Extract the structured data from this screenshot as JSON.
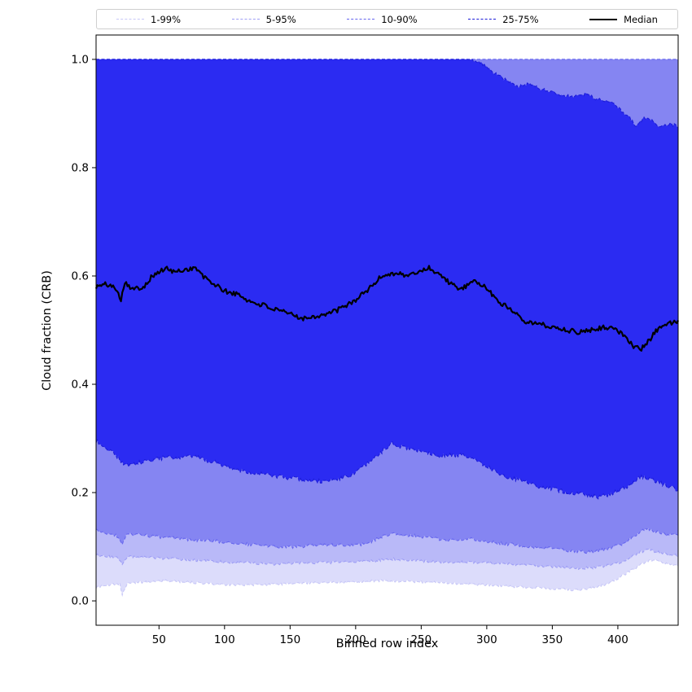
{
  "figure": {
    "background": "#ffffff"
  },
  "legend": {
    "items": [
      {
        "label": "1-99%",
        "color": "#c8c8f7",
        "style": "dashed"
      },
      {
        "label": "5-95%",
        "color": "#9e9ef5",
        "style": "dashed"
      },
      {
        "label": "10-90%",
        "color": "#6666ee",
        "style": "dashed"
      },
      {
        "label": "25-75%",
        "color": "#1b1bd8",
        "style": "dashed"
      },
      {
        "label": "Median",
        "color": "#000000",
        "style": "solid"
      }
    ]
  },
  "chart_data": {
    "type": "area",
    "title": "",
    "xlabel": "Binned row index",
    "ylabel": "Cloud fraction (CRB)",
    "xlim": [
      2,
      446
    ],
    "ylim": [
      -0.045,
      1.045
    ],
    "grid": false,
    "legend_position": "top-outside",
    "xticks": [
      {
        "value": 50,
        "label": "50"
      },
      {
        "value": 100,
        "label": "100"
      },
      {
        "value": 150,
        "label": "150"
      },
      {
        "value": 200,
        "label": "200"
      },
      {
        "value": 250,
        "label": "250"
      },
      {
        "value": 300,
        "label": "300"
      },
      {
        "value": 350,
        "label": "350"
      },
      {
        "value": 400,
        "label": "400"
      }
    ],
    "yticks": [
      {
        "value": 0.0,
        "label": "0.0"
      },
      {
        "value": 0.2,
        "label": "0.2"
      },
      {
        "value": 0.4,
        "label": "0.4"
      },
      {
        "value": 0.6,
        "label": "0.6"
      },
      {
        "value": 0.8,
        "label": "0.8"
      },
      {
        "value": 1.0,
        "label": "1.0"
      }
    ],
    "bands": [
      {
        "name": "1-99%",
        "fill": "#dcdcfb",
        "edge": "#c8c8f7",
        "upper_constant": 1.0,
        "lower_points": [
          [
            2,
            0.025
          ],
          [
            8,
            0.028
          ],
          [
            14,
            0.03
          ],
          [
            20,
            0.032
          ],
          [
            22,
            0.012
          ],
          [
            26,
            0.033
          ],
          [
            40,
            0.035
          ],
          [
            55,
            0.037
          ],
          [
            70,
            0.035
          ],
          [
            85,
            0.032
          ],
          [
            100,
            0.03
          ],
          [
            115,
            0.029
          ],
          [
            130,
            0.03
          ],
          [
            145,
            0.031
          ],
          [
            160,
            0.033
          ],
          [
            175,
            0.034
          ],
          [
            190,
            0.035
          ],
          [
            205,
            0.036
          ],
          [
            220,
            0.037
          ],
          [
            235,
            0.036
          ],
          [
            250,
            0.035
          ],
          [
            265,
            0.034
          ],
          [
            280,
            0.032
          ],
          [
            295,
            0.03
          ],
          [
            310,
            0.028
          ],
          [
            325,
            0.026
          ],
          [
            340,
            0.024
          ],
          [
            355,
            0.022
          ],
          [
            368,
            0.02
          ],
          [
            380,
            0.024
          ],
          [
            390,
            0.03
          ],
          [
            398,
            0.038
          ],
          [
            406,
            0.05
          ],
          [
            414,
            0.062
          ],
          [
            421,
            0.072
          ],
          [
            427,
            0.076
          ],
          [
            433,
            0.071
          ],
          [
            440,
            0.067
          ],
          [
            446,
            0.065
          ]
        ]
      },
      {
        "name": "5-95%",
        "fill": "#b9b9f8",
        "edge": "#9e9ef5",
        "upper_constant": 1.0,
        "lower_points": [
          [
            2,
            0.085
          ],
          [
            10,
            0.082
          ],
          [
            18,
            0.08
          ],
          [
            22,
            0.068
          ],
          [
            26,
            0.082
          ],
          [
            40,
            0.08
          ],
          [
            60,
            0.078
          ],
          [
            80,
            0.075
          ],
          [
            100,
            0.072
          ],
          [
            120,
            0.07
          ],
          [
            140,
            0.068
          ],
          [
            160,
            0.07
          ],
          [
            180,
            0.071
          ],
          [
            200,
            0.072
          ],
          [
            215,
            0.074
          ],
          [
            228,
            0.077
          ],
          [
            240,
            0.075
          ],
          [
            255,
            0.073
          ],
          [
            270,
            0.071
          ],
          [
            285,
            0.072
          ],
          [
            300,
            0.07
          ],
          [
            315,
            0.068
          ],
          [
            330,
            0.066
          ],
          [
            345,
            0.064
          ],
          [
            360,
            0.062
          ],
          [
            372,
            0.06
          ],
          [
            384,
            0.062
          ],
          [
            394,
            0.066
          ],
          [
            402,
            0.072
          ],
          [
            410,
            0.08
          ],
          [
            417,
            0.09
          ],
          [
            424,
            0.094
          ],
          [
            430,
            0.09
          ],
          [
            438,
            0.086
          ],
          [
            446,
            0.083
          ]
        ]
      },
      {
        "name": "10-90%",
        "fill": "#8585f2",
        "edge": "#6666ee",
        "upper_constant": 1.0,
        "lower_points": [
          [
            2,
            0.13
          ],
          [
            10,
            0.125
          ],
          [
            18,
            0.12
          ],
          [
            22,
            0.105
          ],
          [
            26,
            0.125
          ],
          [
            35,
            0.122
          ],
          [
            50,
            0.118
          ],
          [
            65,
            0.115
          ],
          [
            80,
            0.112
          ],
          [
            95,
            0.11
          ],
          [
            110,
            0.106
          ],
          [
            125,
            0.103
          ],
          [
            140,
            0.1
          ],
          [
            155,
            0.1
          ],
          [
            170,
            0.102
          ],
          [
            185,
            0.103
          ],
          [
            200,
            0.102
          ],
          [
            210,
            0.108
          ],
          [
            220,
            0.118
          ],
          [
            228,
            0.125
          ],
          [
            236,
            0.122
          ],
          [
            245,
            0.12
          ],
          [
            255,
            0.118
          ],
          [
            265,
            0.113
          ],
          [
            275,
            0.112
          ],
          [
            285,
            0.115
          ],
          [
            295,
            0.112
          ],
          [
            305,
            0.108
          ],
          [
            315,
            0.105
          ],
          [
            325,
            0.103
          ],
          [
            335,
            0.1
          ],
          [
            345,
            0.098
          ],
          [
            355,
            0.095
          ],
          [
            365,
            0.092
          ],
          [
            375,
            0.09
          ],
          [
            385,
            0.092
          ],
          [
            395,
            0.098
          ],
          [
            403,
            0.105
          ],
          [
            410,
            0.115
          ],
          [
            417,
            0.128
          ],
          [
            423,
            0.132
          ],
          [
            430,
            0.127
          ],
          [
            438,
            0.122
          ],
          [
            446,
            0.12
          ]
        ]
      },
      {
        "name": "25-75%",
        "fill": "#2b2bf2",
        "edge": "#1b1bd8",
        "lower_points": [
          [
            2,
            0.295
          ],
          [
            8,
            0.285
          ],
          [
            15,
            0.275
          ],
          [
            22,
            0.255
          ],
          [
            28,
            0.25
          ],
          [
            35,
            0.255
          ],
          [
            45,
            0.26
          ],
          [
            55,
            0.265
          ],
          [
            65,
            0.262
          ],
          [
            75,
            0.268
          ],
          [
            85,
            0.26
          ],
          [
            95,
            0.255
          ],
          [
            105,
            0.245
          ],
          [
            115,
            0.24
          ],
          [
            125,
            0.235
          ],
          [
            135,
            0.232
          ],
          [
            145,
            0.228
          ],
          [
            155,
            0.225
          ],
          [
            165,
            0.222
          ],
          [
            175,
            0.22
          ],
          [
            185,
            0.225
          ],
          [
            195,
            0.23
          ],
          [
            205,
            0.245
          ],
          [
            215,
            0.265
          ],
          [
            222,
            0.28
          ],
          [
            228,
            0.29
          ],
          [
            235,
            0.285
          ],
          [
            242,
            0.28
          ],
          [
            250,
            0.277
          ],
          [
            258,
            0.272
          ],
          [
            266,
            0.268
          ],
          [
            274,
            0.27
          ],
          [
            282,
            0.268
          ],
          [
            290,
            0.262
          ],
          [
            298,
            0.252
          ],
          [
            306,
            0.24
          ],
          [
            314,
            0.23
          ],
          [
            322,
            0.225
          ],
          [
            330,
            0.22
          ],
          [
            338,
            0.212
          ],
          [
            346,
            0.208
          ],
          [
            354,
            0.205
          ],
          [
            362,
            0.2
          ],
          [
            370,
            0.198
          ],
          [
            378,
            0.195
          ],
          [
            386,
            0.192
          ],
          [
            394,
            0.196
          ],
          [
            402,
            0.205
          ],
          [
            410,
            0.215
          ],
          [
            418,
            0.23
          ],
          [
            425,
            0.225
          ],
          [
            432,
            0.218
          ],
          [
            440,
            0.21
          ],
          [
            446,
            0.205
          ]
        ],
        "upper_points": [
          [
            2,
            1.0
          ],
          [
            285,
            1.0
          ],
          [
            292,
            0.997
          ],
          [
            298,
            0.99
          ],
          [
            305,
            0.976
          ],
          [
            312,
            0.966
          ],
          [
            318,
            0.956
          ],
          [
            325,
            0.95
          ],
          [
            332,
            0.956
          ],
          [
            340,
            0.946
          ],
          [
            348,
            0.941
          ],
          [
            355,
            0.936
          ],
          [
            365,
            0.931
          ],
          [
            375,
            0.936
          ],
          [
            385,
            0.926
          ],
          [
            395,
            0.921
          ],
          [
            402,
            0.906
          ],
          [
            408,
            0.896
          ],
          [
            414,
            0.876
          ],
          [
            420,
            0.891
          ],
          [
            426,
            0.886
          ],
          [
            432,
            0.876
          ],
          [
            440,
            0.881
          ],
          [
            446,
            0.876
          ]
        ]
      }
    ],
    "median": {
      "name": "Median",
      "color": "#000000",
      "points": [
        [
          2,
          0.58
        ],
        [
          10,
          0.585
        ],
        [
          18,
          0.576
        ],
        [
          21,
          0.556
        ],
        [
          24,
          0.59
        ],
        [
          30,
          0.575
        ],
        [
          38,
          0.58
        ],
        [
          45,
          0.6
        ],
        [
          55,
          0.614
        ],
        [
          62,
          0.607
        ],
        [
          70,
          0.612
        ],
        [
          78,
          0.615
        ],
        [
          84,
          0.598
        ],
        [
          92,
          0.585
        ],
        [
          100,
          0.572
        ],
        [
          110,
          0.566
        ],
        [
          120,
          0.552
        ],
        [
          130,
          0.546
        ],
        [
          140,
          0.536
        ],
        [
          150,
          0.53
        ],
        [
          160,
          0.522
        ],
        [
          170,
          0.526
        ],
        [
          180,
          0.531
        ],
        [
          190,
          0.541
        ],
        [
          200,
          0.556
        ],
        [
          210,
          0.576
        ],
        [
          220,
          0.6
        ],
        [
          230,
          0.606
        ],
        [
          240,
          0.6
        ],
        [
          250,
          0.61
        ],
        [
          256,
          0.615
        ],
        [
          263,
          0.605
        ],
        [
          270,
          0.591
        ],
        [
          278,
          0.576
        ],
        [
          285,
          0.581
        ],
        [
          292,
          0.591
        ],
        [
          300,
          0.576
        ],
        [
          310,
          0.551
        ],
        [
          320,
          0.536
        ],
        [
          330,
          0.516
        ],
        [
          340,
          0.511
        ],
        [
          350,
          0.506
        ],
        [
          360,
          0.501
        ],
        [
          370,
          0.496
        ],
        [
          380,
          0.501
        ],
        [
          390,
          0.506
        ],
        [
          398,
          0.501
        ],
        [
          405,
          0.491
        ],
        [
          412,
          0.471
        ],
        [
          418,
          0.465
        ],
        [
          424,
          0.481
        ],
        [
          430,
          0.501
        ],
        [
          436,
          0.511
        ],
        [
          446,
          0.515
        ]
      ]
    }
  }
}
